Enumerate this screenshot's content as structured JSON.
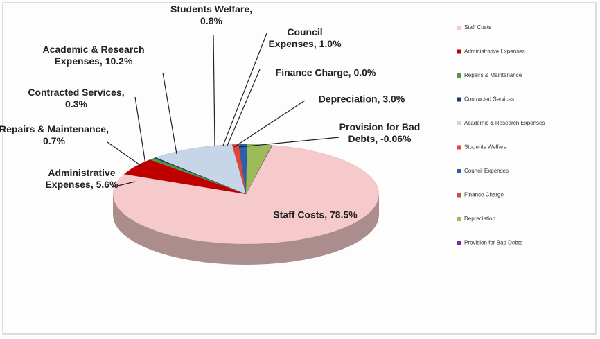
{
  "chart_data": {
    "type": "pie",
    "categories": [
      "Staff Costs",
      "Administrative Expenses",
      "Repairs & Maintenance",
      "Contracted Services",
      "Academic & Research Expenses",
      "Students Welfare",
      "Council Expenses",
      "Finance Charge",
      "Depreciation",
      "Provision for Bad Debts"
    ],
    "values": [
      78.5,
      5.6,
      0.7,
      0.3,
      10.2,
      0.8,
      1.0,
      0.0,
      3.0,
      -0.06
    ],
    "value_labels": [
      "Staff Costs, 78.5%",
      "Administrative Expenses, 5.6%",
      "Repairs & Maintenance, 0.7%",
      "Contracted Services, 0.3%",
      "Academic & Research Expenses, 10.2%",
      "Students Welfare, 0.8%",
      "Council Expenses, 1.0%",
      "Finance Charge, 0.0%",
      "Depreciation, 3.0%",
      "Provision for Bad Debts, -0.06%"
    ],
    "colors": [
      "#f6c9cb",
      "#c00000",
      "#4f9a3c",
      "#1f3864",
      "#c6d5e8",
      "#e2453a",
      "#2e5fa8",
      "#c0504d",
      "#9bbb59",
      "#7030a0"
    ],
    "legend": "right"
  }
}
